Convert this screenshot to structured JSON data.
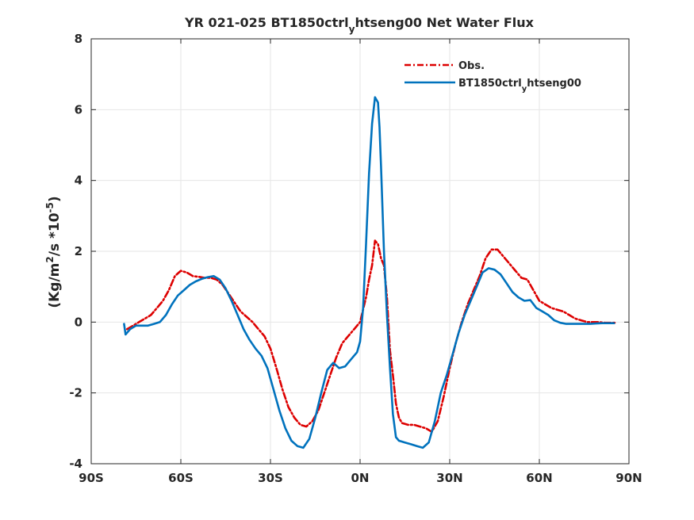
{
  "chart_data": {
    "type": "line",
    "title": "YR 021-025 BT1850ctrl_yhtseng00  Net Water Flux",
    "title_parts": {
      "pre": "YR 021-025 BT1850ctrl",
      "sub": "y",
      "post": "htseng00  Net Water Flux"
    },
    "ylabel_parts": {
      "a": "(Kg/m",
      "sup1": "2",
      "b": "/s *10",
      "sup2": "-5",
      "c": ")"
    },
    "xlabel": "",
    "xlim": [
      -90,
      90
    ],
    "ylim": [
      -4,
      8
    ],
    "x_ticks": [
      -90,
      -60,
      -30,
      0,
      30,
      60,
      90
    ],
    "x_tick_labels": [
      "90S",
      "60S",
      "30S",
      "0N",
      "30N",
      "60N",
      "90N"
    ],
    "y_ticks": [
      -4,
      -2,
      0,
      2,
      4,
      6,
      8
    ],
    "y_tick_labels": [
      "-4",
      "-2",
      "0",
      "2",
      "4",
      "6",
      "8"
    ],
    "grid": true,
    "legend_position": "top-right",
    "series": [
      {
        "name": "Obs.",
        "color": "#dd0000",
        "style": "dash-dot",
        "x": [
          -78,
          -76,
          -74,
          -72,
          -70,
          -68,
          -66,
          -64,
          -62,
          -60,
          -58,
          -56,
          -54,
          -52,
          -50,
          -48,
          -46,
          -44,
          -42,
          -40,
          -38,
          -36,
          -34,
          -32,
          -30,
          -28,
          -26,
          -24,
          -22,
          -20,
          -18,
          -16,
          -14,
          -12,
          -10,
          -8,
          -6,
          -4,
          -2,
          0,
          2,
          3,
          4,
          5,
          6,
          7,
          8,
          9,
          10,
          11,
          12,
          13,
          14,
          16,
          18,
          20,
          22,
          24,
          26,
          28,
          30,
          32,
          34,
          36,
          38,
          40,
          42,
          44,
          46,
          48,
          50,
          52,
          54,
          56,
          58,
          60,
          62,
          64,
          66,
          68,
          70,
          72,
          74,
          76,
          78,
          80,
          82,
          84,
          86
        ],
        "y": [
          -0.2,
          -0.1,
          0.0,
          0.1,
          0.2,
          0.4,
          0.6,
          0.9,
          1.3,
          1.45,
          1.4,
          1.3,
          1.28,
          1.25,
          1.25,
          1.2,
          1.05,
          0.8,
          0.55,
          0.3,
          0.15,
          0.0,
          -0.2,
          -0.4,
          -0.75,
          -1.3,
          -1.9,
          -2.4,
          -2.7,
          -2.9,
          -2.95,
          -2.8,
          -2.5,
          -2.0,
          -1.5,
          -1.0,
          -0.6,
          -0.4,
          -0.2,
          0.0,
          0.7,
          1.2,
          1.6,
          2.3,
          2.2,
          1.8,
          1.6,
          0.7,
          -0.8,
          -1.5,
          -2.3,
          -2.7,
          -2.85,
          -2.9,
          -2.9,
          -2.95,
          -3.0,
          -3.1,
          -2.8,
          -2.1,
          -1.3,
          -0.6,
          0.0,
          0.5,
          0.9,
          1.3,
          1.8,
          2.05,
          2.05,
          1.85,
          1.65,
          1.45,
          1.25,
          1.2,
          0.9,
          0.6,
          0.5,
          0.4,
          0.35,
          0.3,
          0.2,
          0.1,
          0.05,
          0.0,
          0.0,
          0.0,
          -0.02,
          -0.02,
          -0.02
        ]
      },
      {
        "name": "BT1850ctrl_yhtseng00",
        "name_parts": {
          "pre": "BT1850ctrl",
          "sub": "y",
          "post": "htseng00"
        },
        "color": "#0072bd",
        "style": "solid",
        "x": [
          -79,
          -78.5,
          -77,
          -75,
          -73,
          -71,
          -69,
          -67,
          -65,
          -63,
          -61,
          -59,
          -57,
          -55,
          -53,
          -51,
          -49,
          -47,
          -45,
          -43,
          -41,
          -39,
          -37,
          -35,
          -33,
          -31,
          -29,
          -27,
          -25,
          -23,
          -21,
          -19,
          -17,
          -15,
          -13,
          -11,
          -9,
          -7,
          -5,
          -3,
          -1,
          0,
          1,
          2,
          3,
          4,
          5,
          6,
          6.5,
          7,
          8,
          9,
          10,
          11,
          12,
          13,
          15,
          17,
          19,
          21,
          23,
          25,
          27,
          29,
          31,
          33,
          35,
          37,
          39,
          41,
          43,
          45,
          47,
          49,
          51,
          53,
          55,
          57,
          59,
          61,
          63,
          65,
          67,
          69,
          71,
          73,
          75,
          77,
          79,
          81,
          83,
          85
        ],
        "y": [
          -0.05,
          -0.35,
          -0.2,
          -0.1,
          -0.1,
          -0.1,
          -0.05,
          0.0,
          0.2,
          0.5,
          0.75,
          0.9,
          1.05,
          1.15,
          1.22,
          1.27,
          1.3,
          1.2,
          0.95,
          0.6,
          0.2,
          -0.2,
          -0.5,
          -0.75,
          -0.95,
          -1.3,
          -1.9,
          -2.5,
          -3.0,
          -3.35,
          -3.5,
          -3.55,
          -3.3,
          -2.7,
          -2.0,
          -1.35,
          -1.15,
          -1.3,
          -1.25,
          -1.05,
          -0.85,
          -0.55,
          0.4,
          2.2,
          4.2,
          5.6,
          6.35,
          6.2,
          5.5,
          4.4,
          2.0,
          0.2,
          -1.3,
          -2.6,
          -3.25,
          -3.35,
          -3.4,
          -3.45,
          -3.5,
          -3.55,
          -3.4,
          -2.8,
          -2.0,
          -1.5,
          -0.9,
          -0.3,
          0.2,
          0.6,
          1.0,
          1.4,
          1.52,
          1.48,
          1.35,
          1.1,
          0.85,
          0.7,
          0.6,
          0.62,
          0.4,
          0.3,
          0.2,
          0.05,
          -0.02,
          -0.05,
          -0.05,
          -0.05,
          -0.05,
          -0.05,
          -0.04,
          -0.03,
          -0.03,
          -0.03
        ]
      }
    ]
  }
}
